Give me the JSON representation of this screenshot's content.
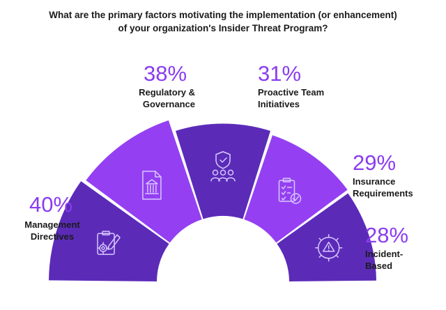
{
  "title": {
    "line1": "What are the primary factors motivating the implementation (or enhancement)",
    "line2": "of your organization's Insider Threat Program?"
  },
  "colors": {
    "dark": "#5b2bb8",
    "light": "#9440f2",
    "accent_text": "#8a3cf0",
    "icon_stroke": "#d9c8ff"
  },
  "chart_data": {
    "type": "bar",
    "title": "What are the primary factors motivating the implementation (or enhancement) of your organization's Insider Threat Program?",
    "categories": [
      "Management Directives",
      "Regulatory & Governance",
      "Proactive Team Initiatives",
      "Insurance Requirements",
      "Incident-Based"
    ],
    "values": [
      40,
      38,
      31,
      29,
      28
    ],
    "value_labels": [
      "40%",
      "38%",
      "31%",
      "29%",
      "28%"
    ],
    "label_lines": [
      [
        "Management",
        "Directives"
      ],
      [
        "Regulatory &",
        "Governance"
      ],
      [
        "Proactive Team",
        "Initiatives"
      ],
      [
        "Insurance",
        "Requirements"
      ],
      [
        "Incident-",
        "Based"
      ]
    ],
    "icons": [
      "clipboard-gear-icon",
      "building-document-icon",
      "shield-team-icon",
      "checklist-icon",
      "gear-warning-icon"
    ],
    "segment_shades": [
      "dark",
      "light",
      "dark",
      "light",
      "dark"
    ],
    "ylim": [
      0,
      40
    ]
  }
}
